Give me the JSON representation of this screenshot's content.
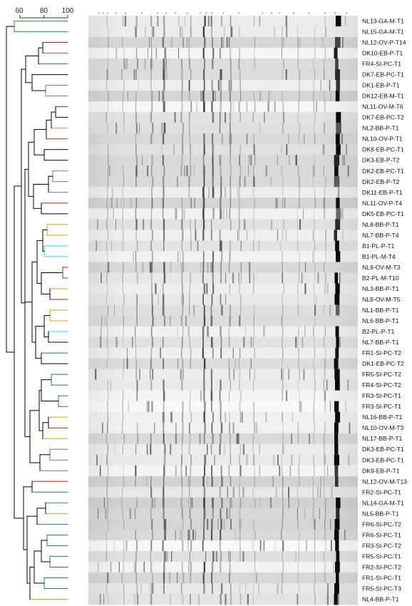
{
  "scale": {
    "ticks": [
      "60",
      "80",
      "100"
    ]
  },
  "colors": {
    "green": "#22b21c",
    "red": "#c81a1a",
    "purple": "#6a6ad6",
    "teal": "#1c7b74",
    "gold": "#d4a017",
    "cyan": "#22d4e0",
    "black": "#000000"
  },
  "samples": [
    {
      "label": "NL13-GA-M-T1",
      "color": "green"
    },
    {
      "label": "NL15-GA-M-T1",
      "color": "green"
    },
    {
      "label": "NL12-OV-P-T14",
      "color": "red"
    },
    {
      "label": "DK10-EB-P-T1",
      "color": "purple"
    },
    {
      "label": "FR4-SI-PC-T1",
      "color": "teal"
    },
    {
      "label": "DK7-EB-PC-T1",
      "color": "black"
    },
    {
      "label": "DK1-EB-P-T1",
      "color": "purple"
    },
    {
      "label": "DK12-EB-M-T1",
      "color": "purple"
    },
    {
      "label": "NL11-OV-M-T6",
      "color": "red"
    },
    {
      "label": "DK7-EB-PC-T2",
      "color": "black"
    },
    {
      "label": "NL2-BB-P-T1",
      "color": "gold"
    },
    {
      "label": "NL10-OV-P-T1",
      "color": "red"
    },
    {
      "label": "DK8-EB-PC-T1",
      "color": "black"
    },
    {
      "label": "DK3-EB-P-T2",
      "color": "black"
    },
    {
      "label": "DK2-EB-PC-T1",
      "color": "purple"
    },
    {
      "label": "DK2-EB-P-T2",
      "color": "purple"
    },
    {
      "label": "DK11-EB-P-T1",
      "color": "purple"
    },
    {
      "label": "NL11-OV-P-T4",
      "color": "red"
    },
    {
      "label": "DK5-EB-PC-T1",
      "color": "black"
    },
    {
      "label": "NL8-BB-P-T1",
      "color": "gold"
    },
    {
      "label": "NL7-BB-P-T4",
      "color": "gold"
    },
    {
      "label": "B1-PL-P-T1",
      "color": "cyan"
    },
    {
      "label": "B1-PL-M-T4",
      "color": "cyan"
    },
    {
      "label": "NL9-OV-M-T3",
      "color": "red"
    },
    {
      "label": "B2-PL-M-T10",
      "color": "red"
    },
    {
      "label": "NL3-BB-P-T1",
      "color": "gold"
    },
    {
      "label": "NL9-OV-M-T5",
      "color": "red"
    },
    {
      "label": "NL1-BB-P-T1",
      "color": "gold"
    },
    {
      "label": "NL6-BB-P-T1",
      "color": "gold"
    },
    {
      "label": "B2-PL-P-T1",
      "color": "cyan"
    },
    {
      "label": "NL7-BB-P-T1",
      "color": "black"
    },
    {
      "label": "FR1-SI-PC-T2",
      "color": "teal"
    },
    {
      "label": "DK1-EB-PC-T2",
      "color": "black"
    },
    {
      "label": "FR5-SI-PC-T2",
      "color": "teal"
    },
    {
      "label": "FR4-SI-PC-T2",
      "color": "teal"
    },
    {
      "label": "FR3-SI-PC-T1",
      "color": "teal"
    },
    {
      "label": "FR3-SI-PC-T1",
      "color": "teal"
    },
    {
      "label": "NL16-BB-P-T1",
      "color": "gold"
    },
    {
      "label": "NL10-OV-M-T3",
      "color": "red"
    },
    {
      "label": "NL17-BB-P-T1",
      "color": "gold"
    },
    {
      "label": "DK3-EB-PC-T1",
      "color": "purple"
    },
    {
      "label": "DK3-EB-PC-T1",
      "color": "purple"
    },
    {
      "label": "DK9-EB-P-T1",
      "color": "purple"
    },
    {
      "label": "NL12-OV-M-T13",
      "color": "red"
    },
    {
      "label": "FR2-SI-PC-T1",
      "color": "teal"
    },
    {
      "label": "NL14-GA-M-T1",
      "color": "green"
    },
    {
      "label": "NL5-BB-P-T1",
      "color": "gold"
    },
    {
      "label": "FR6-SI-PC-T2",
      "color": "teal"
    },
    {
      "label": "FR6-SI-PC-T1",
      "color": "teal"
    },
    {
      "label": "FR3-SI-PC-T2",
      "color": "teal"
    },
    {
      "label": "FR5-SI-PC-T1",
      "color": "teal"
    },
    {
      "label": "FR2-SI-PC-T2",
      "color": "teal"
    },
    {
      "label": "FR1-SI-PC-T1",
      "color": "teal"
    },
    {
      "label": "FR5-SI-PC-T3",
      "color": "teal"
    },
    {
      "label": "NL4-BB-P-T1",
      "color": "gold"
    }
  ]
}
